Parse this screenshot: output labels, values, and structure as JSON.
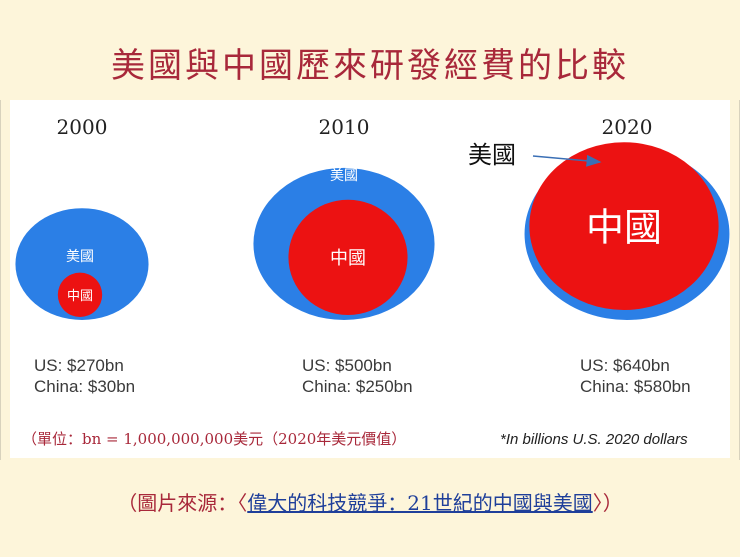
{
  "title": "美國與中國歷來研發經費的比較",
  "chart_data": {
    "type": "nested-bubble",
    "unit_note": "（單位：bn = 1,000,000,000美元（2020年美元價值）",
    "unit_note_en": "*In billions U.S. 2020 dollars",
    "annotation": "美國",
    "series": [
      {
        "name": "US",
        "label": "美國",
        "color": "#2b7fe6"
      },
      {
        "name": "China",
        "label": "中國",
        "color": "#ec1212"
      }
    ],
    "years": [
      {
        "year": "2000",
        "us": 270,
        "china": 30,
        "us_text": "US: $270bn",
        "china_text": "China: $30bn"
      },
      {
        "year": "2010",
        "us": 500,
        "china": 250,
        "us_text": "US: $500bn",
        "china_text": "China: $250bn"
      },
      {
        "year": "2020",
        "us": 640,
        "china": 580,
        "us_text": "US: $640bn",
        "china_text": "China: $580bn"
      }
    ]
  },
  "source": {
    "prefix": "（圖片來源：〈",
    "link": "偉大的科技競爭：21世紀的中國與美國",
    "suffix": "〉）"
  }
}
